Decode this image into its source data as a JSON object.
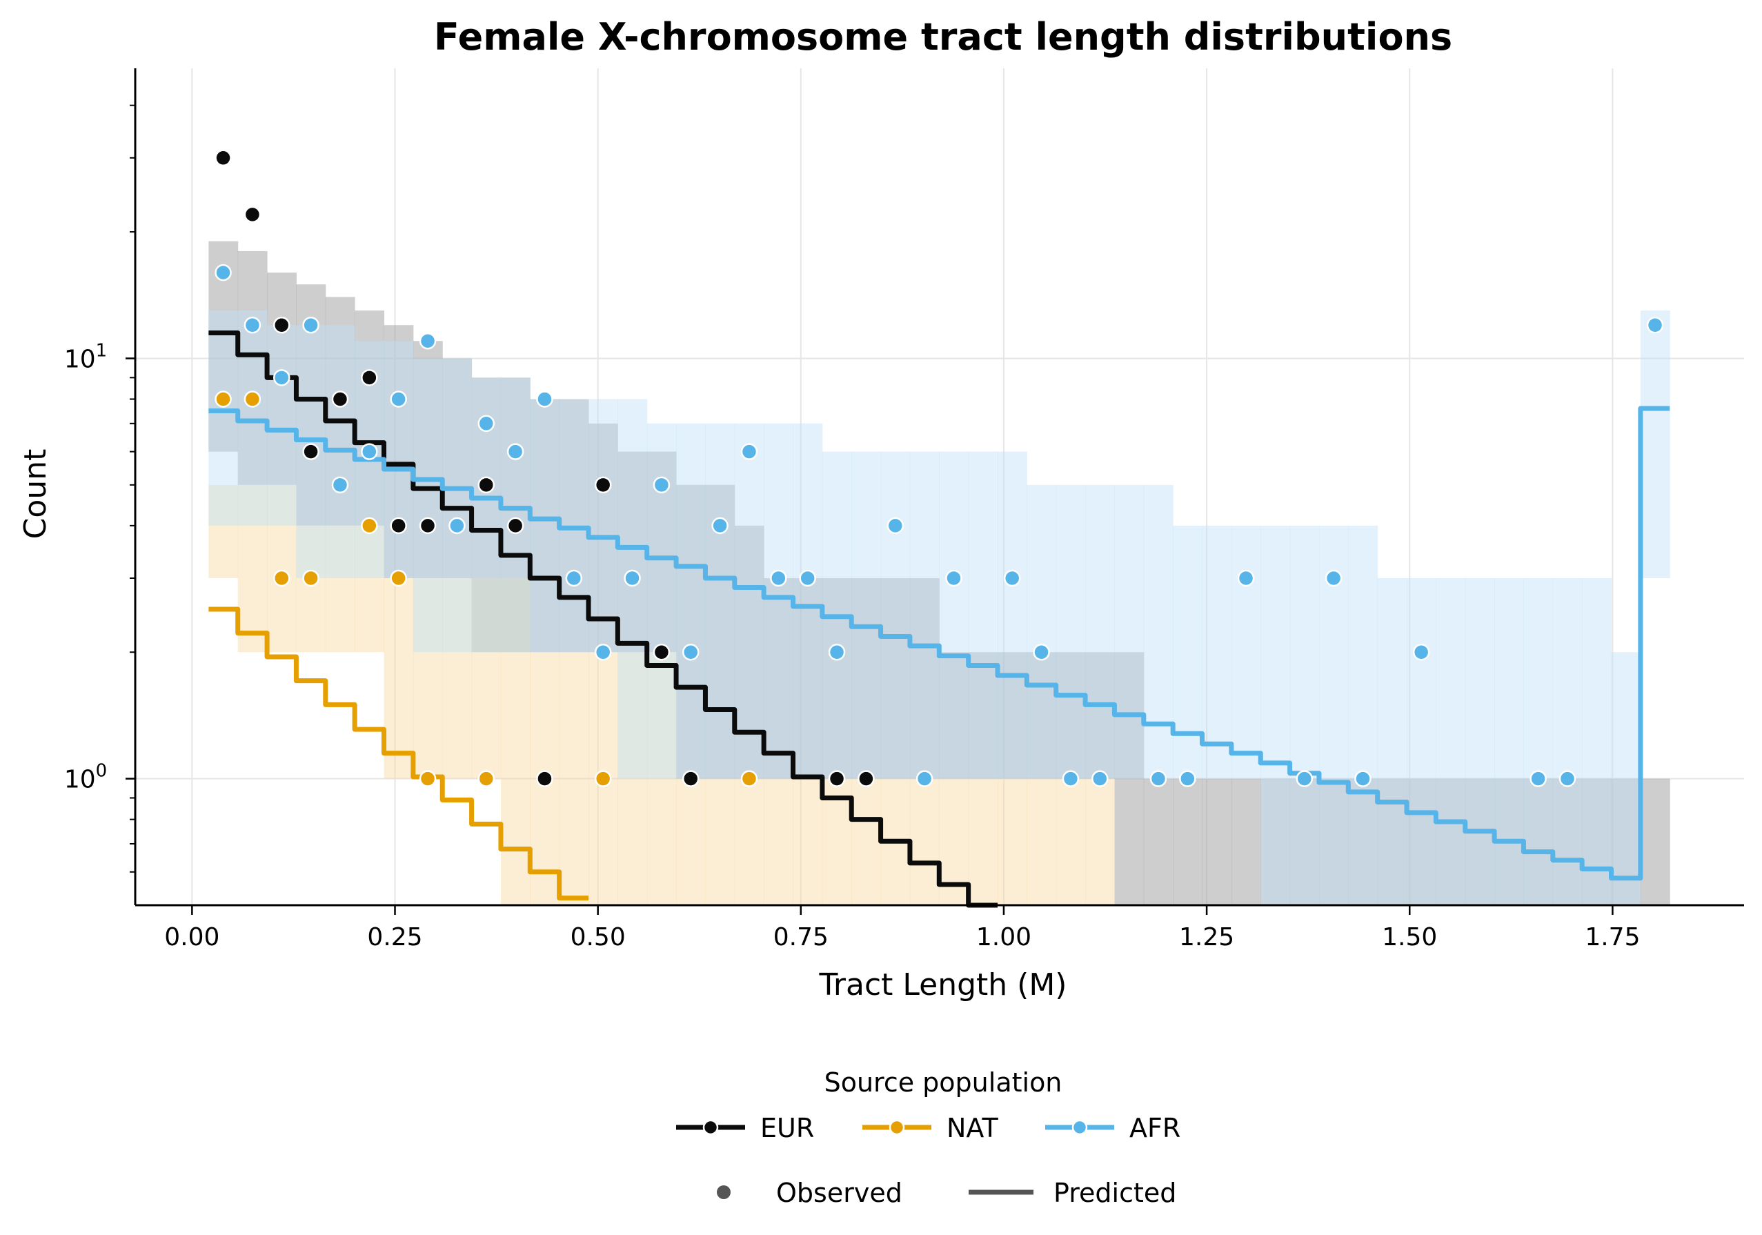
{
  "chart_data": {
    "type": "line",
    "title": "Female X-chromosome tract length distributions",
    "xlabel": "Tract Length (M)",
    "ylabel": "Count",
    "yscale": "log",
    "xlim": [
      -0.07,
      1.912
    ],
    "ylim": [
      0.5,
      49
    ],
    "grid": true,
    "x_ticks": [
      "0.00",
      "0.25",
      "0.50",
      "0.75",
      "1.00",
      "1.25",
      "1.50",
      "1.75"
    ],
    "x_tick_values": [
      0,
      0.25,
      0.5,
      0.75,
      1.0,
      1.25,
      1.5,
      1.75
    ],
    "y_ticks": [
      {
        "value": 1,
        "base": "10",
        "exp": "0"
      },
      {
        "value": 10,
        "base": "10",
        "exp": "1"
      }
    ],
    "bins": {
      "start": 0.0204,
      "width": 0.036,
      "count": 50
    },
    "series": [
      {
        "name": "EUR",
        "color": "#0b0b0b",
        "band_color": "#9e9e9e",
        "observed": [
          [
            0,
            30
          ],
          [
            1,
            22
          ],
          [
            2,
            12
          ],
          [
            3,
            6
          ],
          [
            4,
            8
          ],
          [
            5,
            9
          ],
          [
            6,
            4
          ],
          [
            7,
            4
          ],
          [
            9,
            5
          ],
          [
            10,
            4
          ],
          [
            11,
            1
          ],
          [
            13,
            5
          ],
          [
            15,
            2
          ],
          [
            16,
            1
          ],
          [
            21,
            1
          ],
          [
            22,
            1
          ]
        ],
        "predicted": [
          11.5,
          10.2,
          9.0,
          8.0,
          7.1,
          6.3,
          5.6,
          4.9,
          4.4,
          3.9,
          3.4,
          3.0,
          2.7,
          2.4,
          2.1,
          1.86,
          1.65,
          1.46,
          1.29,
          1.15,
          1.01,
          0.9,
          0.8,
          0.71,
          0.63,
          0.56,
          0.49
        ],
        "band_upper": [
          19,
          18,
          16,
          15,
          14,
          13,
          12,
          11,
          10,
          9,
          9,
          8,
          8,
          7,
          6,
          6,
          5,
          5,
          4,
          3,
          3,
          3,
          3,
          3,
          3,
          2,
          2,
          2,
          2,
          2,
          2,
          2,
          1,
          1,
          1,
          1,
          1,
          1,
          1,
          1,
          1,
          1,
          1,
          1,
          1,
          1,
          1,
          1,
          1,
          1
        ],
        "band_lower": [
          6,
          5,
          5,
          4,
          4,
          4,
          3,
          3,
          3,
          2,
          2,
          2,
          2,
          2,
          2,
          2,
          1,
          1,
          1,
          1,
          1,
          1,
          1,
          1,
          1,
          1,
          1,
          1,
          1,
          1,
          1,
          0.4,
          0.4,
          0.4,
          0.4,
          0.4,
          0.4,
          0.4,
          0.4,
          0.4,
          0.4,
          0.4,
          0.4,
          0.4,
          0.4,
          0.4,
          0.4,
          0.4,
          0.4,
          0.4
        ]
      },
      {
        "name": "NAT",
        "color": "#e69f00",
        "band_color": "#f7d9a0",
        "observed": [
          [
            0,
            8
          ],
          [
            1,
            8
          ],
          [
            2,
            3
          ],
          [
            3,
            3
          ],
          [
            5,
            4
          ],
          [
            6,
            3
          ],
          [
            7,
            1
          ],
          [
            9,
            1
          ],
          [
            13,
            1
          ],
          [
            18,
            1
          ]
        ],
        "predicted": [
          2.53,
          2.22,
          1.95,
          1.71,
          1.5,
          1.31,
          1.15,
          1.01,
          0.89,
          0.78,
          0.68,
          0.6,
          0.52
        ],
        "band_upper": [
          5,
          5,
          5,
          4,
          4,
          4,
          3,
          3,
          3,
          3,
          3,
          2,
          2,
          2,
          2,
          2,
          1,
          1,
          1,
          1,
          1,
          1,
          1,
          1,
          1,
          1,
          1,
          1,
          1,
          1,
          1
        ],
        "band_lower": [
          3,
          2,
          2,
          2,
          2,
          2,
          1,
          1,
          1,
          1,
          0.4,
          0.4,
          0.4,
          0.4,
          0.4,
          0.4,
          0.4,
          0.4,
          0.4,
          0.4,
          0.4,
          0.4,
          0.4,
          0.4,
          0.4,
          0.4,
          0.4,
          0.4,
          0.4,
          0.4,
          0.4
        ]
      },
      {
        "name": "AFR",
        "color": "#56b4e9",
        "band_color": "#bfe0f6",
        "observed": [
          [
            0,
            16
          ],
          [
            1,
            12
          ],
          [
            2,
            9
          ],
          [
            3,
            12
          ],
          [
            4,
            5
          ],
          [
            5,
            6
          ],
          [
            6,
            8
          ],
          [
            7,
            11
          ],
          [
            8,
            4
          ],
          [
            9,
            7
          ],
          [
            10,
            6
          ],
          [
            11,
            8
          ],
          [
            12,
            3
          ],
          [
            13,
            2
          ],
          [
            14,
            3
          ],
          [
            15,
            5
          ],
          [
            16,
            2
          ],
          [
            17,
            4
          ],
          [
            18,
            6
          ],
          [
            19,
            3
          ],
          [
            20,
            3
          ],
          [
            21,
            2
          ],
          [
            23,
            4
          ],
          [
            24,
            1
          ],
          [
            25,
            3
          ],
          [
            27,
            3
          ],
          [
            28,
            2
          ],
          [
            29,
            1
          ],
          [
            30,
            1
          ],
          [
            32,
            1
          ],
          [
            33,
            1
          ],
          [
            35,
            3
          ],
          [
            37,
            1
          ],
          [
            38,
            3
          ],
          [
            39,
            1
          ],
          [
            41,
            2
          ],
          [
            45,
            1
          ],
          [
            46,
            1
          ],
          [
            49,
            12
          ]
        ],
        "predicted": [
          7.5,
          7.1,
          6.75,
          6.4,
          6.05,
          5.75,
          5.45,
          5.15,
          4.9,
          4.65,
          4.4,
          4.15,
          3.95,
          3.75,
          3.55,
          3.35,
          3.2,
          3.0,
          2.85,
          2.7,
          2.57,
          2.43,
          2.3,
          2.18,
          2.07,
          1.96,
          1.86,
          1.76,
          1.67,
          1.58,
          1.5,
          1.42,
          1.35,
          1.28,
          1.21,
          1.15,
          1.09,
          1.03,
          0.98,
          0.93,
          0.88,
          0.83,
          0.79,
          0.75,
          0.71,
          0.67,
          0.64,
          0.61,
          0.58,
          7.6
        ],
        "band_upper": [
          13,
          13,
          12,
          12,
          12,
          11,
          11,
          10,
          10,
          9,
          9,
          8,
          8,
          8,
          8,
          7,
          7,
          7,
          7,
          7,
          7,
          6,
          6,
          6,
          6,
          6,
          6,
          6,
          5,
          5,
          5,
          5,
          5,
          4,
          4,
          4,
          4,
          4,
          4,
          4,
          3,
          3,
          3,
          3,
          3,
          3,
          3,
          3,
          2,
          13
        ],
        "band_lower": [
          4,
          4,
          4,
          3,
          3,
          3,
          3,
          2,
          2,
          2,
          2,
          2,
          2,
          2,
          1,
          1,
          1,
          1,
          1,
          1,
          1,
          1,
          1,
          1,
          1,
          1,
          1,
          1,
          1,
          1,
          1,
          1,
          1,
          1,
          1,
          1,
          0.4,
          0.4,
          0.4,
          0.4,
          0.4,
          0.4,
          0.4,
          0.4,
          0.4,
          0.4,
          0.4,
          0.4,
          0.4,
          3
        ]
      }
    ],
    "legend": {
      "title": "Source population",
      "placement": "bottom-center",
      "population_entries": [
        "EUR",
        "NAT",
        "AFR"
      ],
      "style_entries": [
        {
          "label": "Observed",
          "marker": "dot",
          "color": "#555555"
        },
        {
          "label": "Predicted",
          "marker": "line",
          "color": "#555555"
        }
      ]
    }
  }
}
